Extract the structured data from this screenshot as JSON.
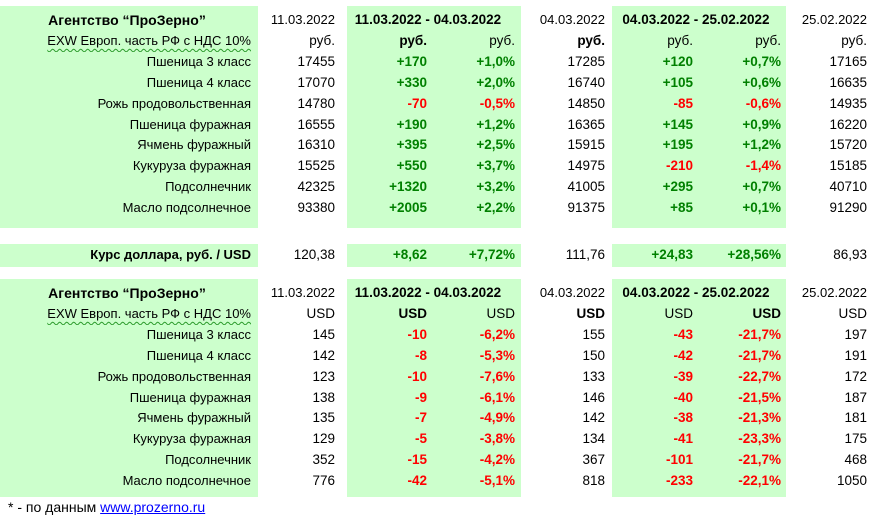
{
  "tables": [
    {
      "title": "Агентство “ПроЗерно”",
      "date_current": "11.03.2022",
      "period1": "11.03.2022 - 04.03.2022",
      "date_mid": "04.03.2022",
      "period2": "04.03.2022 - 25.02.2022",
      "date_prev": "25.02.2022",
      "units_label": "EXW Европ. часть РФ с НДС 10%",
      "units": [
        "руб.",
        "руб.",
        "руб.",
        "руб.",
        "руб.",
        "руб.",
        "руб."
      ],
      "rows": [
        {
          "name": "Пшеница 3 класс",
          "v1": "17455",
          "d1": "+170",
          "p1": "+1,0%",
          "v2": "17285",
          "d2": "+120",
          "p2": "+0,7%",
          "v3": "17165"
        },
        {
          "name": "Пшеница 4 класс",
          "v1": "17070",
          "d1": "+330",
          "p1": "+2,0%",
          "v2": "16740",
          "d2": "+105",
          "p2": "+0,6%",
          "v3": "16635"
        },
        {
          "name": "Рожь продовольственная",
          "v1": "14780",
          "d1": "-70",
          "p1": "-0,5%",
          "v2": "14850",
          "d2": "-85",
          "p2": "-0,6%",
          "v3": "14935"
        },
        {
          "name": "Пшеница фуражная",
          "v1": "16555",
          "d1": "+190",
          "p1": "+1,2%",
          "v2": "16365",
          "d2": "+145",
          "p2": "+0,9%",
          "v3": "16220"
        },
        {
          "name": "Ячмень фуражный",
          "v1": "16310",
          "d1": "+395",
          "p1": "+2,5%",
          "v2": "15915",
          "d2": "+195",
          "p2": "+1,2%",
          "v3": "15720"
        },
        {
          "name": "Кукуруза фуражная",
          "v1": "15525",
          "d1": "+550",
          "p1": "+3,7%",
          "v2": "14975",
          "d2": "-210",
          "p2": "-1,4%",
          "v3": "15185"
        },
        {
          "name": "Подсолнечник",
          "v1": "42325",
          "d1": "+1320",
          "p1": "+3,2%",
          "v2": "41005",
          "d2": "+295",
          "p2": "+0,7%",
          "v3": "40710"
        },
        {
          "name": "Масло подсолнечное",
          "v1": "93380",
          "d1": "+2005",
          "p1": "+2,2%",
          "v2": "91375",
          "d2": "+85",
          "p2": "+0,1%",
          "v3": "91290"
        }
      ]
    },
    {
      "title": "Агентство “ПроЗерно”",
      "date_current": "11.03.2022",
      "period1": "11.03.2022 - 04.03.2022",
      "date_mid": "04.03.2022",
      "period2": "04.03.2022 - 25.02.2022",
      "date_prev": "25.02.2022",
      "units_label": "EXW Европ. часть РФ с НДС 10%",
      "units": [
        "USD",
        "USD",
        "USD",
        "USD",
        "USD",
        "USD",
        "USD"
      ],
      "rows": [
        {
          "name": "Пшеница 3 класс",
          "v1": "145",
          "d1": "-10",
          "p1": "-6,2%",
          "v2": "155",
          "d2": "-43",
          "p2": "-21,7%",
          "v3": "197"
        },
        {
          "name": "Пшеница 4 класс",
          "v1": "142",
          "d1": "-8",
          "p1": "-5,3%",
          "v2": "150",
          "d2": "-42",
          "p2": "-21,7%",
          "v3": "191"
        },
        {
          "name": "Рожь продовольственная",
          "v1": "123",
          "d1": "-10",
          "p1": "-7,6%",
          "v2": "133",
          "d2": "-39",
          "p2": "-22,7%",
          "v3": "172"
        },
        {
          "name": "Пшеница фуражная",
          "v1": "138",
          "d1": "-9",
          "p1": "-6,1%",
          "v2": "146",
          "d2": "-40",
          "p2": "-21,5%",
          "v3": "187"
        },
        {
          "name": "Ячмень фуражный",
          "v1": "135",
          "d1": "-7",
          "p1": "-4,9%",
          "v2": "142",
          "d2": "-38",
          "p2": "-21,3%",
          "v3": "181"
        },
        {
          "name": "Кукуруза фуражная",
          "v1": "129",
          "d1": "-5",
          "p1": "-3,8%",
          "v2": "134",
          "d2": "-41",
          "p2": "-23,3%",
          "v3": "175"
        },
        {
          "name": "Подсолнечник",
          "v1": "352",
          "d1": "-15",
          "p1": "-4,2%",
          "v2": "367",
          "d2": "-101",
          "p2": "-21,7%",
          "v3": "468"
        },
        {
          "name": "Масло подсолнечное",
          "v1": "776",
          "d1": "-42",
          "p1": "-5,1%",
          "v2": "818",
          "d2": "-233",
          "p2": "-22,1%",
          "v3": "1050"
        }
      ]
    }
  ],
  "usd_rate": {
    "label": "Курс доллара, руб. / USD",
    "v1": "120,38",
    "d1": "+8,62",
    "p1": "+7,72%",
    "v2": "111,76",
    "d2": "+24,83",
    "p2": "+28,56%",
    "v3": "86,93"
  },
  "footer": {
    "prefix": "* - по данным ",
    "link_text": "www.prozerno.ru"
  },
  "colors": {
    "band": "#ccffcc",
    "positive": "#008000",
    "negative": "#ff0000",
    "link": "#0000ff"
  }
}
